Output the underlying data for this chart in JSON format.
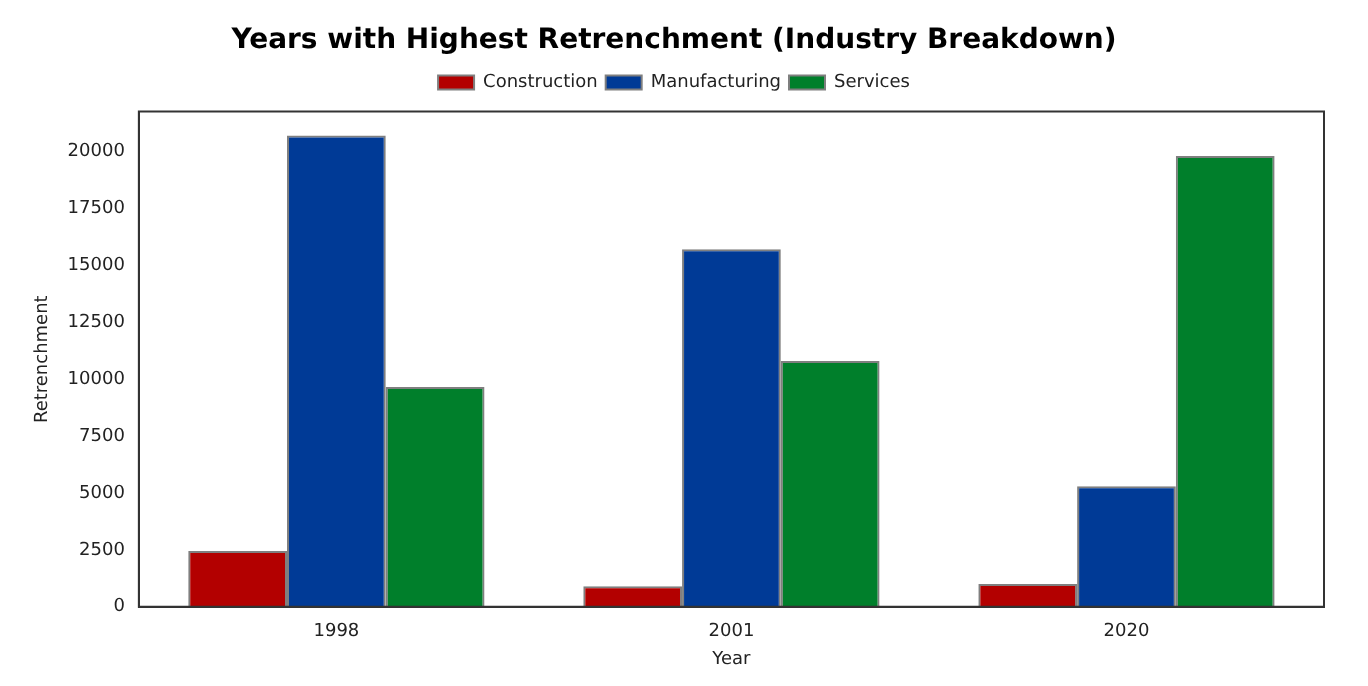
{
  "chart_data": {
    "type": "bar",
    "title": "Years with Highest Retrenchment (Industry Breakdown)",
    "xlabel": "Year",
    "ylabel": "Retrenchment",
    "categories": [
      "1998",
      "2001",
      "2020"
    ],
    "series": [
      {
        "name": "Construction",
        "color": "#b30000",
        "values": [
          2450,
          900,
          1000
        ]
      },
      {
        "name": "Manufacturing",
        "color": "#003a96",
        "values": [
          20700,
          15700,
          5300
        ]
      },
      {
        "name": "Services",
        "color": "#007f2b",
        "values": [
          9650,
          10800,
          19800
        ]
      }
    ],
    "ylim": [
      0,
      21750
    ],
    "yticks": [
      0,
      2500,
      5000,
      7500,
      10000,
      12500,
      15000,
      17500,
      20000
    ],
    "grid": false,
    "legend": "top"
  }
}
